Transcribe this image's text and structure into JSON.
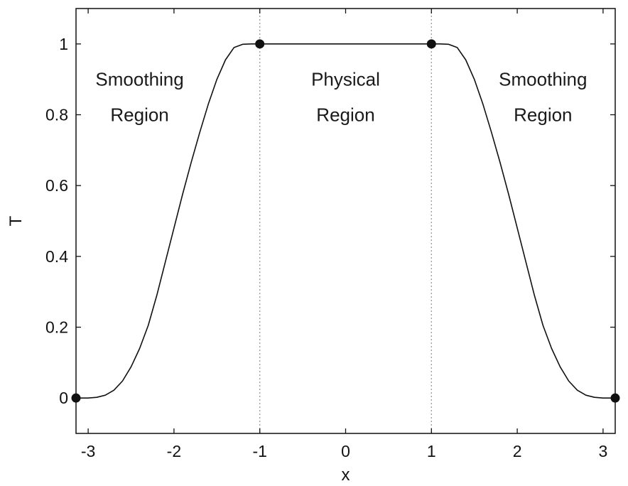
{
  "chart_data": {
    "type": "line",
    "xlabel": "x",
    "ylabel": "T",
    "xlim": [
      -3.1416,
      3.1416
    ],
    "ylim": [
      -0.1,
      1.1
    ],
    "xticks": [
      -3,
      -2,
      -1,
      0,
      1,
      2,
      3
    ],
    "xtick_labels": [
      "-3",
      "-2",
      "-1",
      "0",
      "1",
      "2",
      "3"
    ],
    "yticks": [
      0,
      0.2,
      0.4,
      0.6,
      0.8,
      1
    ],
    "ytick_labels": [
      "0",
      "0.2",
      "0.4",
      "0.6",
      "0.8",
      "1"
    ],
    "grid": false,
    "series": [
      {
        "x": [
          -3.1416,
          -3.0,
          -2.9,
          -2.8,
          -2.7,
          -2.6,
          -2.5,
          -2.4,
          -2.3,
          -2.2,
          -2.1,
          -2.0,
          -1.9,
          -1.8,
          -1.7,
          -1.6,
          -1.5,
          -1.4,
          -1.3,
          -1.2,
          -1.1,
          -1.0,
          -0.5,
          0,
          0.5,
          1.0,
          1.1,
          1.2,
          1.3,
          1.4,
          1.5,
          1.6,
          1.7,
          1.8,
          1.9,
          2.0,
          2.1,
          2.2,
          2.3,
          2.4,
          2.5,
          2.6,
          2.7,
          2.8,
          2.9,
          3.0,
          3.1416
        ],
        "y": [
          0.0,
          0.0,
          0.002,
          0.008,
          0.022,
          0.048,
          0.088,
          0.14,
          0.205,
          0.29,
          0.385,
          0.48,
          0.575,
          0.665,
          0.75,
          0.83,
          0.9,
          0.955,
          0.99,
          0.999,
          1.0,
          1.0,
          1.0,
          1.0,
          1.0,
          1.0,
          1.0,
          0.999,
          0.99,
          0.955,
          0.9,
          0.83,
          0.75,
          0.665,
          0.575,
          0.48,
          0.385,
          0.29,
          0.205,
          0.14,
          0.088,
          0.048,
          0.022,
          0.008,
          0.002,
          0.0,
          0.0
        ],
        "color": "#111111"
      }
    ],
    "markers": {
      "x": [
        -3.1416,
        -1,
        1,
        3.1416
      ],
      "y": [
        0,
        1,
        1,
        0
      ],
      "color": "#111111"
    },
    "boundary_lines": {
      "x": [
        -1,
        1
      ],
      "style": "dotted",
      "color": "#9a9a9a"
    },
    "annotations": [
      {
        "lines": [
          "Smoothing",
          "Region"
        ],
        "x": -2.4,
        "y": [
          0.9,
          0.8
        ]
      },
      {
        "lines": [
          "Physical",
          "Region"
        ],
        "x": 0.0,
        "y": [
          0.9,
          0.8
        ]
      },
      {
        "lines": [
          "Smoothing",
          "Region"
        ],
        "x": 2.3,
        "y": [
          0.9,
          0.8
        ]
      }
    ]
  }
}
